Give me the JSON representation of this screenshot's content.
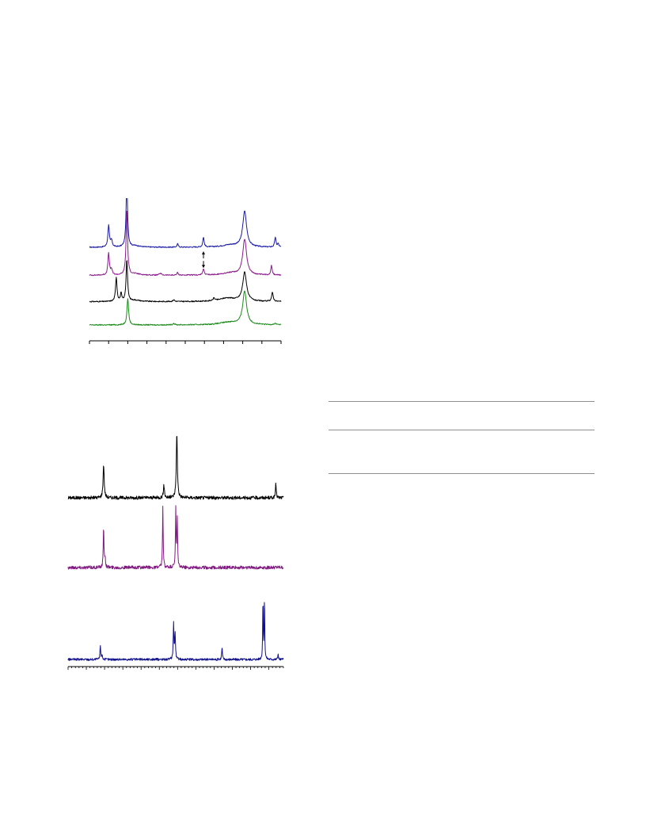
{
  "chart_data": [
    {
      "type": "line",
      "title": "",
      "xlabel": "",
      "ylabel": "",
      "grid": false,
      "legend": "none",
      "x_ticks": 11,
      "series": [
        {
          "name": "",
          "color": "#1a1aa6",
          "baseline": 1.0,
          "peaks": [
            [
              0.1,
              1.0,
              0.0045
            ],
            [
              0.115,
              0.3,
              0.005
            ],
            [
              0.195,
              3.0,
              0.0045
            ],
            [
              0.24,
              0.06,
              0.03
            ],
            [
              0.46,
              0.15,
              0.004
            ],
            [
              0.595,
              0.45,
              0.004
            ],
            [
              0.735,
              0.1,
              0.05
            ],
            [
              0.81,
              1.6,
              0.012
            ],
            [
              0.97,
              0.45,
              0.004
            ],
            [
              0.985,
              0.15,
              0.004
            ]
          ]
        },
        {
          "name": "",
          "color": "#8a1a8a",
          "baseline": 0.64,
          "peaks": [
            [
              0.1,
              1.0,
              0.0045
            ],
            [
              0.115,
              0.25,
              0.005
            ],
            [
              0.195,
              3.0,
              0.0045
            ],
            [
              0.24,
              0.06,
              0.03
            ],
            [
              0.37,
              0.08,
              0.006
            ],
            [
              0.46,
              0.12,
              0.004
            ],
            [
              0.595,
              0.3,
              0.004
            ],
            [
              0.735,
              0.1,
              0.05
            ],
            [
              0.81,
              1.6,
              0.012
            ],
            [
              0.95,
              0.45,
              0.004
            ]
          ]
        },
        {
          "name": "",
          "color": "#000000",
          "baseline": 0.3,
          "peaks": [
            [
              0.14,
              1.1,
              0.0045
            ],
            [
              0.165,
              0.35,
              0.004
            ],
            [
              0.195,
              1.9,
              0.0045
            ],
            [
              0.24,
              0.06,
              0.03
            ],
            [
              0.44,
              0.08,
              0.005
            ],
            [
              0.65,
              0.12,
              0.005
            ],
            [
              0.72,
              0.16,
              0.05
            ],
            [
              0.81,
              1.3,
              0.012
            ],
            [
              0.955,
              0.4,
              0.005
            ]
          ]
        },
        {
          "name": "",
          "color": "#1a8a1a",
          "baseline": 0.0,
          "peaks": [
            [
              0.2,
              1.2,
              0.005
            ],
            [
              0.44,
              0.07,
              0.005
            ],
            [
              0.73,
              0.12,
              0.06
            ],
            [
              0.81,
              1.5,
              0.012
            ],
            [
              0.97,
              0.05,
              0.01
            ]
          ]
        }
      ],
      "annotations": [
        {
          "type": "arrow-up",
          "x": 0.595,
          "series": 0
        },
        {
          "type": "arrow-down",
          "x": 0.595,
          "series": 1
        }
      ]
    },
    {
      "type": "line",
      "title": "",
      "xlabel": "",
      "ylabel": "",
      "grid": false,
      "legend": "none",
      "x_ticks": 60,
      "series": [
        {
          "name": "",
          "color": "#000000",
          "baseline": 0.0,
          "peaks": [
            [
              0.165,
              0.5,
              0.003
            ],
            [
              0.445,
              0.18,
              0.003
            ],
            [
              0.505,
              0.95,
              0.003
            ],
            [
              0.965,
              0.22,
              0.002
            ]
          ]
        },
        {
          "name": "",
          "color": "#801a80",
          "baseline": 0.0,
          "peaks": [
            [
              0.165,
              0.6,
              0.002
            ],
            [
              0.172,
              0.15,
              0.002
            ],
            [
              0.44,
              0.9,
              0.0018
            ],
            [
              0.5,
              0.85,
              0.0018
            ],
            [
              0.507,
              0.72,
              0.0018
            ]
          ]
        },
        {
          "name": "",
          "color": "#10108c",
          "baseline": 0.0,
          "peaks": [
            [
              0.15,
              0.3,
              0.002
            ],
            [
              0.158,
              0.1,
              0.002
            ],
            [
              0.49,
              0.75,
              0.002
            ],
            [
              0.497,
              0.55,
              0.002
            ],
            [
              0.715,
              0.25,
              0.002
            ],
            [
              0.905,
              1.3,
              0.0015
            ],
            [
              0.912,
              1.3,
              0.0015
            ],
            [
              0.975,
              0.1,
              0.002
            ]
          ]
        }
      ]
    }
  ],
  "table": {
    "rows": 2
  }
}
